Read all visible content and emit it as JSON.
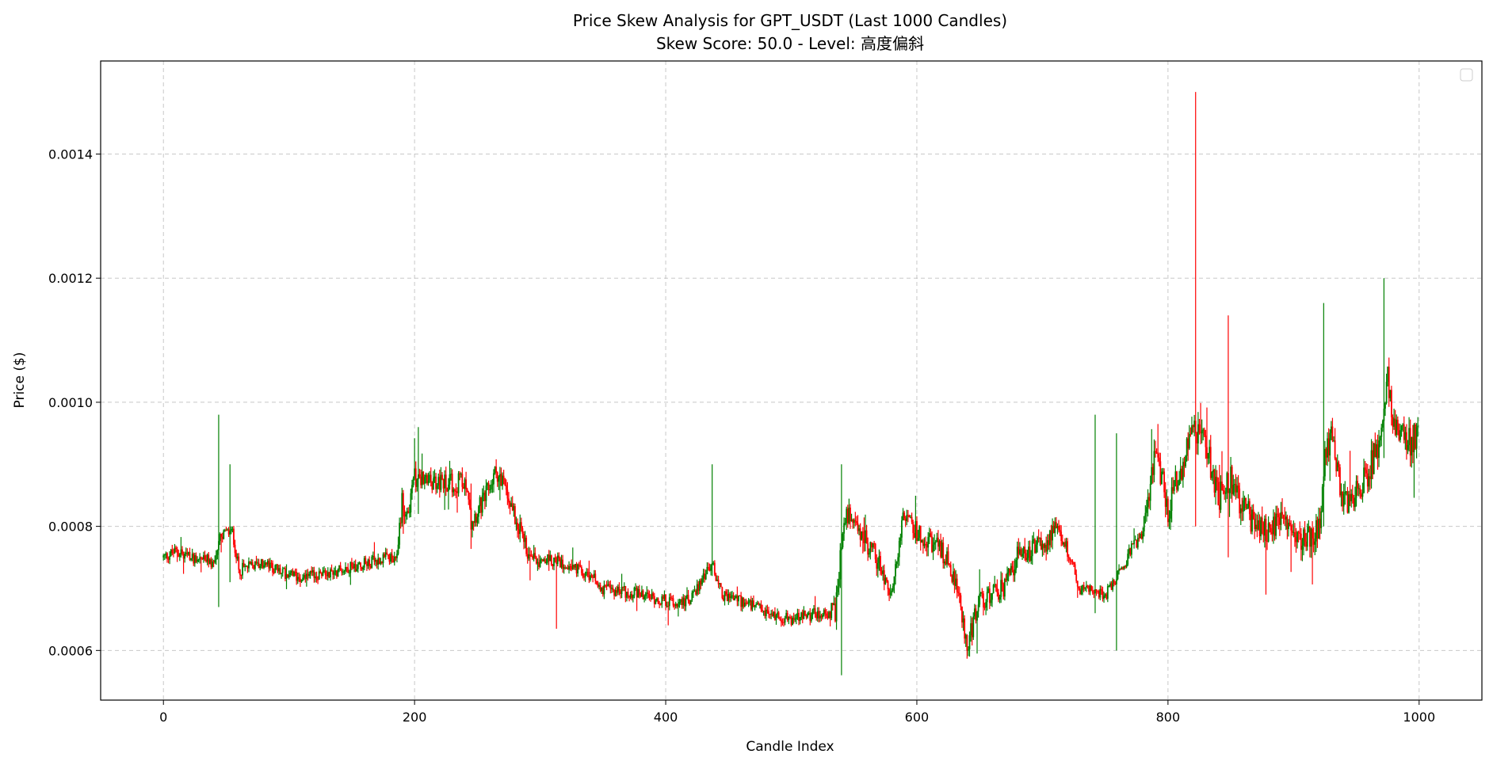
{
  "chart_data": {
    "type": "candlestick",
    "title": "Price Skew Analysis for GPT_USDT (Last 1000 Candles)",
    "subtitle": "Skew Score: 50.0 - Level: 高度偏斜",
    "xlabel": "Candle Index",
    "ylabel": "Price ($)",
    "xlim": [
      -50,
      1050
    ],
    "ylim": [
      0.00052,
      0.00155
    ],
    "xticks": [
      0,
      200,
      400,
      600,
      800,
      1000
    ],
    "xtick_labels": [
      "0",
      "200",
      "400",
      "600",
      "800",
      "1000"
    ],
    "yticks": [
      0.0006,
      0.0008,
      0.001,
      0.0012,
      0.0014
    ],
    "ytick_labels": [
      "0.0006",
      "0.0008",
      "0.0010",
      "0.0012",
      "0.0014"
    ],
    "grid": true,
    "grid_style": "dashed",
    "legend": "top-right (empty)",
    "up_color": "#008000",
    "down_color": "#ff0000",
    "candle_count": 1000,
    "close_anchors": [
      [
        0,
        0.00075
      ],
      [
        10,
        0.00076
      ],
      [
        20,
        0.00075
      ],
      [
        30,
        0.00075
      ],
      [
        40,
        0.00074
      ],
      [
        45,
        0.00078
      ],
      [
        50,
        0.00079
      ],
      [
        55,
        0.00079
      ],
      [
        60,
        0.00073
      ],
      [
        80,
        0.00074
      ],
      [
        100,
        0.00072
      ],
      [
        120,
        0.00072
      ],
      [
        140,
        0.00073
      ],
      [
        160,
        0.00074
      ],
      [
        180,
        0.00075
      ],
      [
        185,
        0.00074
      ],
      [
        190,
        0.00084
      ],
      [
        195,
        0.00082
      ],
      [
        200,
        0.00088
      ],
      [
        210,
        0.00087
      ],
      [
        220,
        0.00087
      ],
      [
        240,
        0.00087
      ],
      [
        245,
        0.00081
      ],
      [
        255,
        0.00084
      ],
      [
        265,
        0.00089
      ],
      [
        270,
        0.00087
      ],
      [
        280,
        0.00082
      ],
      [
        290,
        0.00076
      ],
      [
        300,
        0.00075
      ],
      [
        320,
        0.00074
      ],
      [
        340,
        0.00072
      ],
      [
        350,
        0.0007
      ],
      [
        380,
        0.00069
      ],
      [
        400,
        0.00068
      ],
      [
        420,
        0.00068
      ],
      [
        430,
        0.00072
      ],
      [
        437,
        0.00074
      ],
      [
        445,
        0.00069
      ],
      [
        460,
        0.00068
      ],
      [
        480,
        0.00066
      ],
      [
        500,
        0.00065
      ],
      [
        520,
        0.00066
      ],
      [
        535,
        0.00066
      ],
      [
        540,
        0.00078
      ],
      [
        545,
        0.00082
      ],
      [
        555,
        0.00079
      ],
      [
        565,
        0.00076
      ],
      [
        580,
        0.00069
      ],
      [
        590,
        0.00082
      ],
      [
        600,
        0.00079
      ],
      [
        620,
        0.00076
      ],
      [
        630,
        0.00072
      ],
      [
        640,
        0.00061
      ],
      [
        650,
        0.00068
      ],
      [
        670,
        0.0007
      ],
      [
        680,
        0.00075
      ],
      [
        700,
        0.00077
      ],
      [
        710,
        0.00079
      ],
      [
        720,
        0.00076
      ],
      [
        730,
        0.0007
      ],
      [
        750,
        0.00069
      ],
      [
        760,
        0.00072
      ],
      [
        770,
        0.00076
      ],
      [
        780,
        0.00079
      ],
      [
        790,
        0.00092
      ],
      [
        800,
        0.00083
      ],
      [
        810,
        0.00089
      ],
      [
        820,
        0.00095
      ],
      [
        830,
        0.00094
      ],
      [
        840,
        0.00084
      ],
      [
        850,
        0.00088
      ],
      [
        860,
        0.00083
      ],
      [
        870,
        0.0008
      ],
      [
        880,
        0.00079
      ],
      [
        890,
        0.00081
      ],
      [
        900,
        0.00079
      ],
      [
        910,
        0.00078
      ],
      [
        920,
        0.00079
      ],
      [
        925,
        0.00093
      ],
      [
        930,
        0.00094
      ],
      [
        940,
        0.00083
      ],
      [
        950,
        0.00085
      ],
      [
        960,
        0.00089
      ],
      [
        970,
        0.00095
      ],
      [
        975,
        0.00104
      ],
      [
        980,
        0.00097
      ],
      [
        990,
        0.00093
      ],
      [
        999,
        0.00095
      ]
    ],
    "wick_spikes": [
      {
        "x": 44,
        "high": 0.00098,
        "low": 0.00067
      },
      {
        "x": 53,
        "high": 0.0009,
        "low": 0.00071
      },
      {
        "x": 203,
        "high": 0.00096,
        "low": 0.00082
      },
      {
        "x": 313,
        "high": 0.00072,
        "low": 0.000635
      },
      {
        "x": 437,
        "high": 0.0009,
        "low": 0.00072
      },
      {
        "x": 540,
        "high": 0.0009,
        "low": 0.00056
      },
      {
        "x": 648,
        "high": 0.00066,
        "low": 0.000595
      },
      {
        "x": 742,
        "high": 0.00098,
        "low": 0.00066
      },
      {
        "x": 759,
        "high": 0.00095,
        "low": 0.0006
      },
      {
        "x": 822,
        "high": 0.0015,
        "low": 0.0008
      },
      {
        "x": 848,
        "high": 0.00114,
        "low": 0.00075
      },
      {
        "x": 878,
        "high": 0.00082,
        "low": 0.00069
      },
      {
        "x": 924,
        "high": 0.00116,
        "low": 0.0008
      },
      {
        "x": 972,
        "high": 0.0012,
        "low": 0.00091
      }
    ]
  }
}
